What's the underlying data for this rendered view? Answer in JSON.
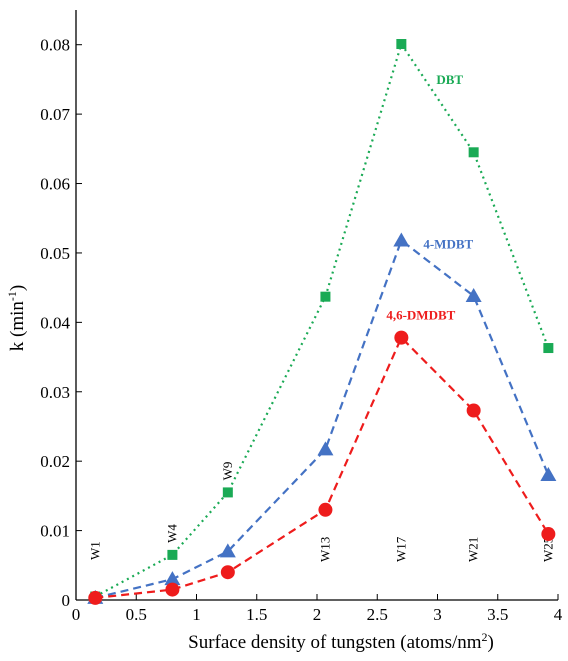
{
  "chart_data": {
    "type": "line",
    "title": "",
    "xlabel": "Surface density of tungsten (atoms/nm",
    "xlabel_sup": "2",
    "xlabel_end": ")",
    "ylabel": "k (min",
    "ylabel_sup": "-1",
    "ylabel_end": ")",
    "xlim": [
      0,
      4
    ],
    "ylim": [
      0,
      0.085
    ],
    "xticks": [
      "0",
      "0.5",
      "1",
      "1.5",
      "2",
      "2.5",
      "3",
      "3.5",
      "4"
    ],
    "yticks": [
      "0",
      "0.01",
      "0.02",
      "0.03",
      "0.04",
      "0.05",
      "0.06",
      "0.07",
      "0.08"
    ],
    "x": [
      0.16,
      0.8,
      1.26,
      2.07,
      2.7,
      3.3,
      3.92
    ],
    "sample_labels": [
      "W1",
      "W4",
      "W9",
      "W13",
      "W17",
      "W21",
      "W25"
    ],
    "series": [
      {
        "name": "DBT",
        "values": [
          0.0005,
          0.0065,
          0.0155,
          0.0437,
          0.0801,
          0.0645,
          0.0363
        ],
        "color": "#1aaa55",
        "marker": "square",
        "dash": "dotted"
      },
      {
        "name": "4-MDBT",
        "values": [
          0.0003,
          0.003,
          0.007,
          0.0217,
          0.0518,
          0.0438,
          0.018
        ],
        "color": "#4472c4",
        "marker": "triangle",
        "dash": "dashed"
      },
      {
        "name": "4,6-DMDBT",
        "values": [
          0.0003,
          0.0015,
          0.004,
          0.013,
          0.0378,
          0.0273,
          0.0095
        ],
        "color": "#ee1c1c",
        "marker": "circle",
        "dash": "dashed"
      }
    ],
    "grid": false,
    "legend": "inline"
  }
}
